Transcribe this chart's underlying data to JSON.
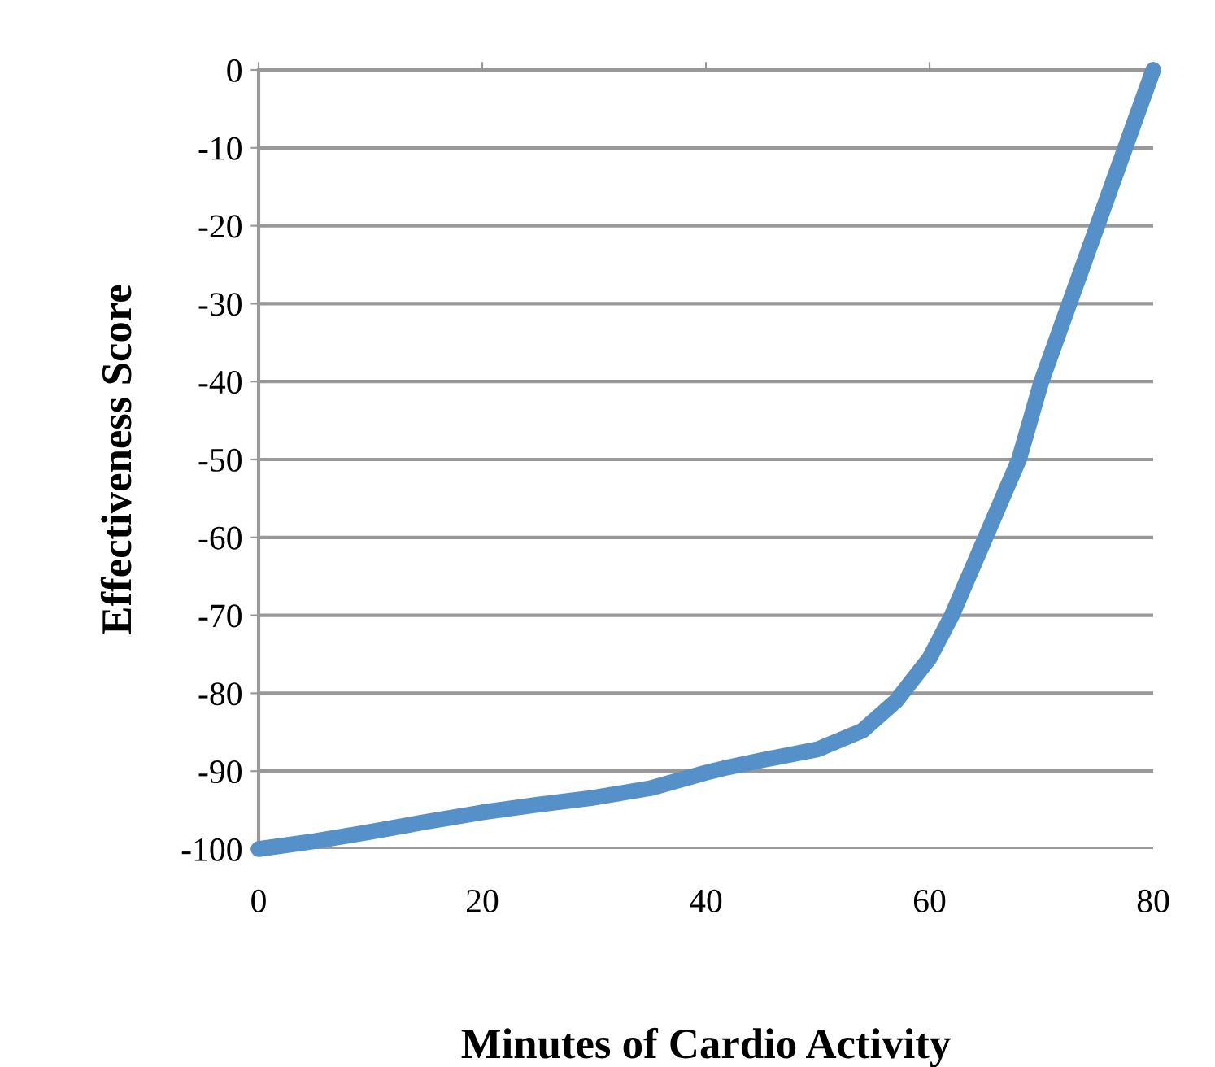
{
  "chart_data": {
    "type": "line",
    "xlabel": "Minutes of Cardio Activity",
    "ylabel": "Effectiveness Score",
    "x": [
      0,
      5,
      10,
      15,
      20,
      25,
      30,
      35,
      40,
      42,
      45,
      50,
      54,
      57,
      60,
      62,
      65,
      68,
      70,
      72.5,
      75,
      77.5,
      80
    ],
    "series": [
      {
        "color": "#5590c8",
        "values": [
          -100,
          -99,
          -97.8,
          -96.5,
          -95.3,
          -94.3,
          -93.4,
          -92.2,
          -90.2,
          -89.5,
          -88.6,
          -87.2,
          -84.8,
          -81,
          -75.5,
          -70,
          -60,
          -50,
          -40,
          -30,
          -20,
          -10,
          0
        ]
      }
    ],
    "xlim": [
      0,
      80
    ],
    "xticks": [
      0,
      20,
      40,
      60,
      80
    ],
    "ylim": [
      -100,
      0
    ],
    "yticks": [
      -100,
      -90,
      -80,
      -70,
      -60,
      -50,
      -40,
      -30,
      -20,
      -10,
      0
    ],
    "grid": "y",
    "legend": false,
    "marker": "none",
    "line_style": "solid"
  }
}
